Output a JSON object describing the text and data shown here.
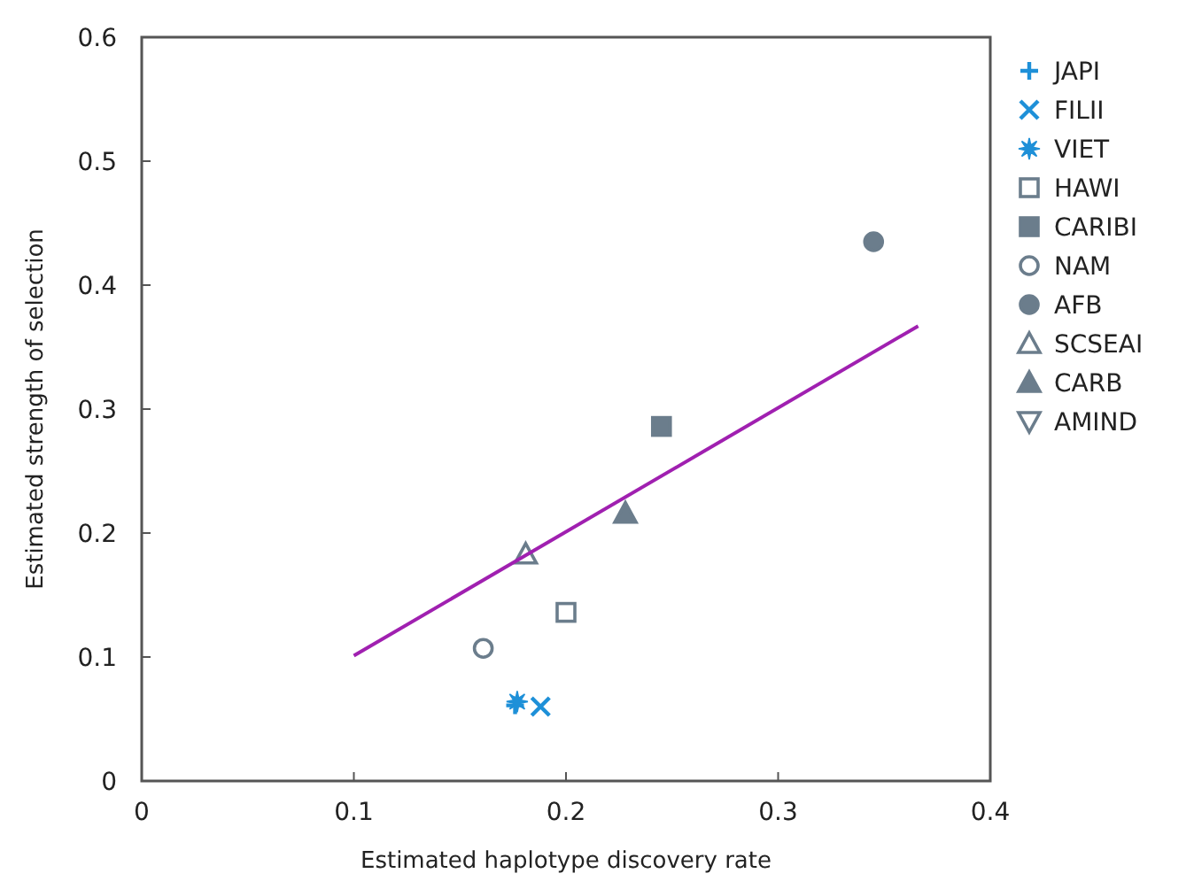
{
  "chart_data": {
    "type": "scatter",
    "xlabel": "Estimated haplotype discovery rate",
    "ylabel": "Estimated strength of selection",
    "xlim": [
      0,
      0.4
    ],
    "ylim": [
      0,
      0.6
    ],
    "xticks": [
      0,
      0.1,
      0.2,
      0.3,
      0.4
    ],
    "yticks": [
      0,
      0.1,
      0.2,
      0.3,
      0.4,
      0.5,
      0.6
    ],
    "grid": false,
    "legend": "right",
    "series": [
      {
        "name": "JAPI",
        "color": "#1e90d8",
        "marker": "plus",
        "x": [
          0.176
        ],
        "values": [
          0.061
        ]
      },
      {
        "name": "FILII",
        "color": "#1e90d8",
        "marker": "cross",
        "x": [
          0.188
        ],
        "values": [
          0.06
        ]
      },
      {
        "name": "VIET",
        "color": "#1e90d8",
        "marker": "star",
        "x": [
          0.177
        ],
        "values": [
          0.064
        ]
      },
      {
        "name": "HAWI",
        "color": "#6b7d8c",
        "marker": "square-open",
        "x": [
          0.2
        ],
        "values": [
          0.136
        ]
      },
      {
        "name": "CARIBI",
        "color": "#6b7d8c",
        "marker": "square",
        "x": [
          0.245
        ],
        "values": [
          0.286
        ]
      },
      {
        "name": "NAM",
        "color": "#6b7d8c",
        "marker": "circle-open",
        "x": [
          0.161
        ],
        "values": [
          0.107
        ]
      },
      {
        "name": "AFB",
        "color": "#6b7d8c",
        "marker": "circle",
        "x": [
          0.345
        ],
        "values": [
          0.435
        ]
      },
      {
        "name": "SCSEAI",
        "color": "#6b7d8c",
        "marker": "triangle-open",
        "x": [
          0.181
        ],
        "values": [
          0.183
        ]
      },
      {
        "name": "CARB",
        "color": "#6b7d8c",
        "marker": "triangle",
        "x": [
          0.228
        ],
        "values": [
          0.216
        ]
      },
      {
        "name": "AMIND",
        "color": "#6b7d8c",
        "marker": "triangle-down-open",
        "x": [
          null
        ],
        "values": [
          null
        ]
      },
      {
        "type": "line",
        "color": "#a020b0",
        "x": [
          0.1,
          0.366
        ],
        "values": [
          0.101,
          0.367
        ]
      }
    ]
  }
}
